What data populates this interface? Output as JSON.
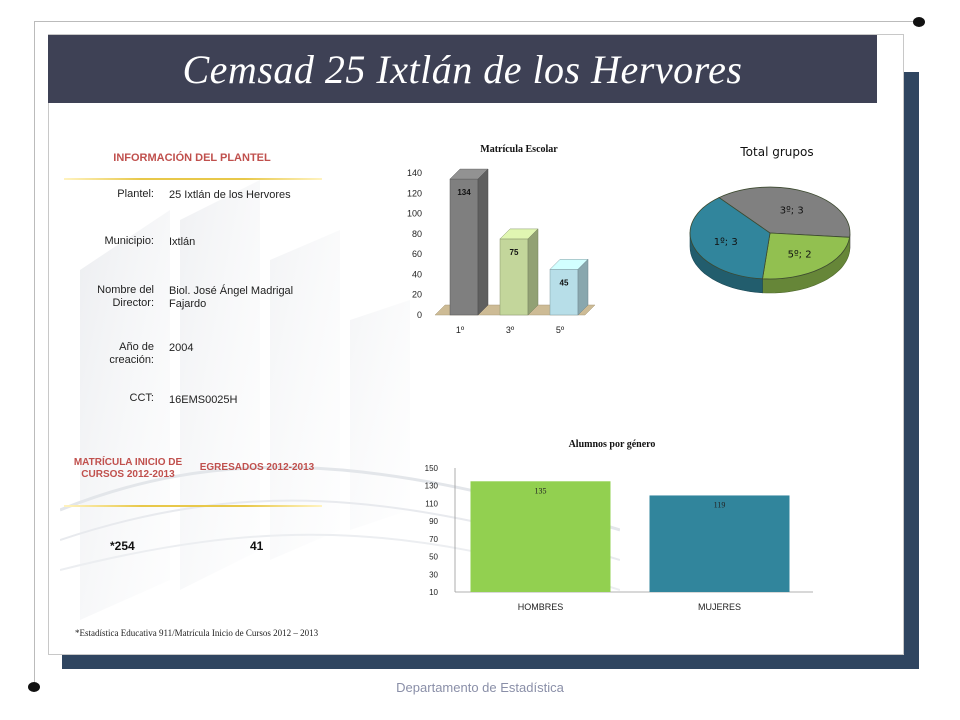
{
  "title": "Cemsad 25 Ixtlán de los Hervores",
  "info": {
    "heading": "INFORMACIÓN DEL PLANTEL",
    "rows": [
      {
        "label": "Plantel:",
        "value": "25 Ixtlán de los Hervores"
      },
      {
        "label": "Municipio:",
        "value": "Ixtlán"
      },
      {
        "label": "Nombre del Director:",
        "value": "Biol. José Ángel Madrigal Fajardo"
      },
      {
        "label": "Año de creación:",
        "value": "2004"
      },
      {
        "label": "CCT:",
        "value": "16EMS0025H"
      }
    ]
  },
  "stats": {
    "matricula_heading": "MATRÍCULA INICIO DE CURSOS 2012-2013",
    "egresados_heading": "EGRESADOS 2012-2013",
    "matricula_value": "*254",
    "egresados_value": "41"
  },
  "footnote": "*Estadística Educativa 911/Matrícula Inicio de Cursos 2012 – 2013",
  "footer": "Departamento de Estadística",
  "colors": {
    "title_bar": "#3e4155",
    "frame_shadow": "#2f4560",
    "accent_red": "#c0504d",
    "gray": "#7f7f7f",
    "green": "#92d050",
    "light_green": "#c3d69b",
    "light_blue": "#b7dee8",
    "teal": "#31859c"
  },
  "chart_data": [
    {
      "type": "bar",
      "title": "Matrícula Escolar",
      "categories": [
        "1º",
        "3º",
        "5º"
      ],
      "values": [
        134,
        75,
        45
      ],
      "ylim": [
        0,
        140
      ],
      "yticks": [
        "0",
        "20",
        "40",
        "60",
        "80",
        "100",
        "120",
        "140"
      ],
      "colors": [
        "#7f7f7f",
        "#c3d69b",
        "#b7dee8"
      ],
      "three_d": true
    },
    {
      "type": "pie",
      "title": "Total grupos",
      "slices": [
        {
          "label": "3º; 3",
          "value": 3,
          "color": "#808080"
        },
        {
          "label": "5º; 2",
          "value": 2,
          "color": "#92c050"
        },
        {
          "label": "1º; 3",
          "value": 3,
          "color": "#31859c"
        }
      ],
      "three_d": true
    },
    {
      "type": "bar",
      "title": "Alumnos por género",
      "categories": [
        "HOMBRES",
        "MUJERES"
      ],
      "values": [
        135,
        119
      ],
      "ylim": [
        10,
        150
      ],
      "yticks": [
        "10",
        "30",
        "50",
        "70",
        "90",
        "110",
        "130",
        "150"
      ],
      "colors": [
        "#92d050",
        "#31859c"
      ]
    }
  ]
}
